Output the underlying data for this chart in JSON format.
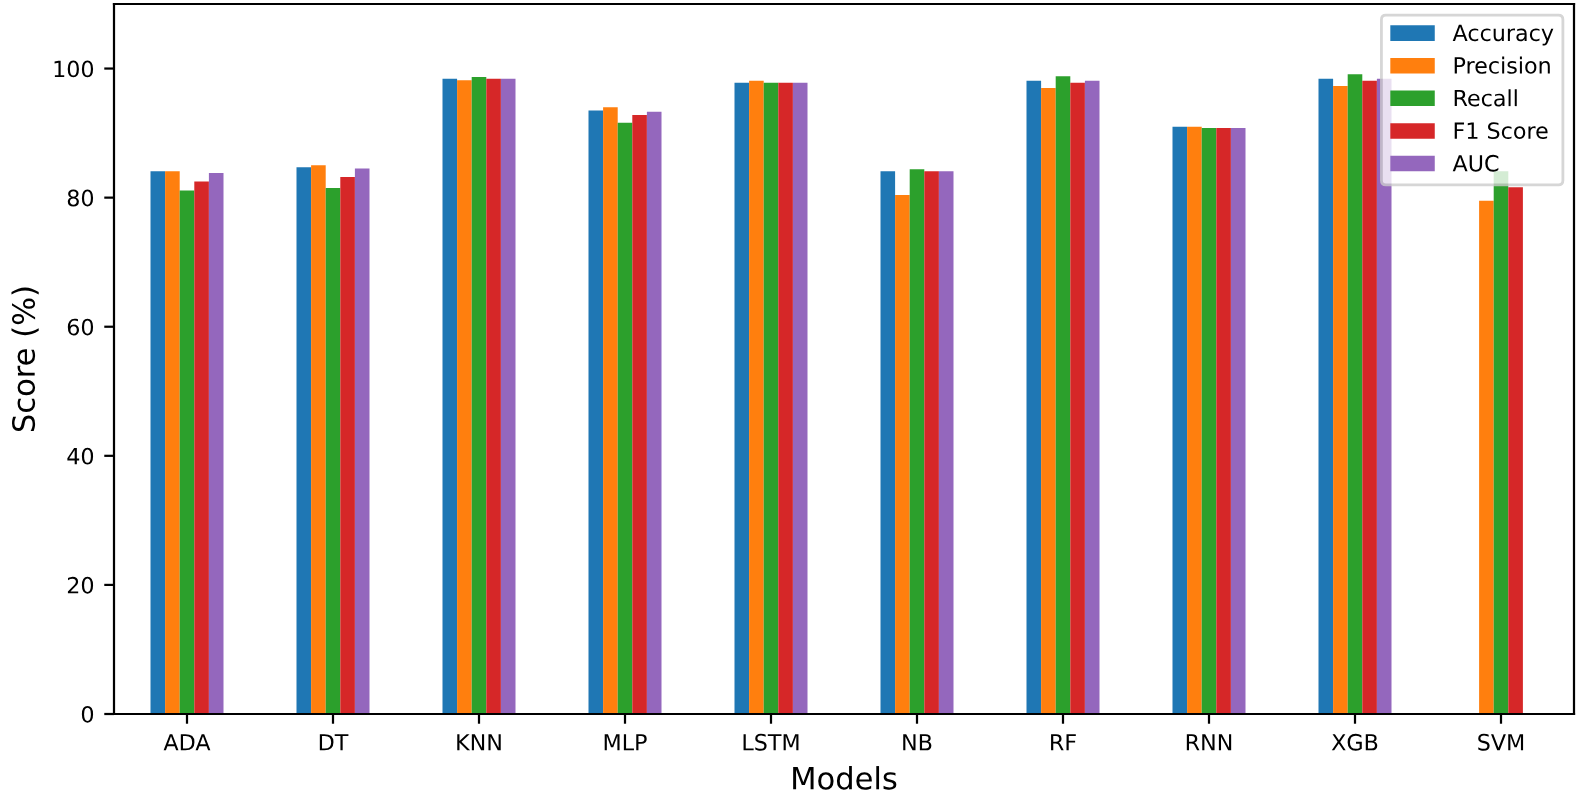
{
  "chart_data": {
    "type": "bar",
    "xlabel": "Models",
    "ylabel": "Score (%)",
    "categories": [
      "ADA",
      "DT",
      "KNN",
      "MLP",
      "LSTM",
      "NB",
      "RF",
      "RNN",
      "XGB",
      "SVM"
    ],
    "series": [
      {
        "name": "Accuracy",
        "color": "#1f77b4",
        "values": [
          84.1,
          84.7,
          98.4,
          93.5,
          97.8,
          84.1,
          98.1,
          91.0,
          98.4,
          null
        ]
      },
      {
        "name": "Precision",
        "color": "#ff7f0e",
        "values": [
          84.1,
          85.0,
          98.2,
          94.0,
          98.1,
          80.4,
          97.0,
          91.0,
          97.3,
          79.5
        ]
      },
      {
        "name": "Recall",
        "color": "#2ca02c",
        "values": [
          81.1,
          81.5,
          98.7,
          91.6,
          97.8,
          84.4,
          98.8,
          90.8,
          99.1,
          84.1
        ]
      },
      {
        "name": "F1 Score",
        "color": "#d62728",
        "values": [
          82.5,
          83.2,
          98.4,
          92.8,
          97.8,
          84.1,
          97.8,
          90.8,
          98.1,
          81.6
        ]
      },
      {
        "name": "AUC",
        "color": "#9467bd",
        "values": [
          83.8,
          84.5,
          98.4,
          93.3,
          97.8,
          84.1,
          98.1,
          90.8,
          98.4,
          null
        ]
      }
    ],
    "ylim": [
      0,
      110
    ],
    "yticks": [
      0,
      20,
      40,
      60,
      80,
      100
    ],
    "legend": "top right"
  }
}
